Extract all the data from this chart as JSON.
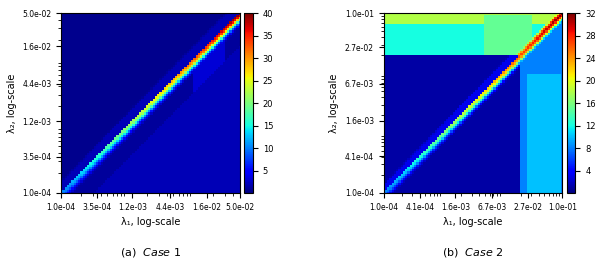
{
  "case1": {
    "lam_min": 0.0001,
    "lam_max": 0.05,
    "vmin": 0,
    "vmax": 40,
    "colorbar_ticks": [
      5,
      10,
      15,
      20,
      25,
      30,
      35,
      40
    ],
    "xtick_labels": [
      "1.0e-04",
      "3.5e-04",
      "1.2e-03",
      "4.4e-03",
      "1.6e-02",
      "5.0e-02"
    ],
    "ytick_labels": [
      "1.0e-04",
      "3.5e-04",
      "1.2e-03",
      "4.4e-03",
      "1.6e-02",
      "5.0e-02"
    ],
    "xtick_vals": [
      0.0001,
      0.00035,
      0.0012,
      0.0044,
      0.016,
      0.05
    ],
    "ytick_vals": [
      0.0001,
      0.00035,
      0.0012,
      0.0044,
      0.016,
      0.05
    ],
    "title": "Case 1",
    "label": "(a)"
  },
  "case2": {
    "lam_min": 0.0001,
    "lam_max": 0.1,
    "vmin": 0,
    "vmax": 32,
    "colorbar_ticks": [
      4,
      8,
      12,
      16,
      20,
      24,
      28,
      32
    ],
    "xtick_labels": [
      "1.0e-04",
      "4.1e-04",
      "1.6e-03",
      "6.7e-03",
      "2.7e-02",
      "1.0e-01"
    ],
    "ytick_labels": [
      "1.0e-04",
      "4.1e-04",
      "1.6e-03",
      "6.7e-03",
      "2.7e-02",
      "1.0e-01"
    ],
    "xtick_vals": [
      0.0001,
      0.00041,
      0.0016,
      0.0067,
      0.027,
      0.1
    ],
    "ytick_vals": [
      0.0001,
      0.00041,
      0.0016,
      0.0067,
      0.027,
      0.1
    ],
    "title": "Case 2",
    "label": "(b)"
  },
  "n_grid": 80,
  "xlabel": "λ₁, log-scale",
  "ylabel": "λ₂, log-scale",
  "cmap": "jet_r_custom"
}
